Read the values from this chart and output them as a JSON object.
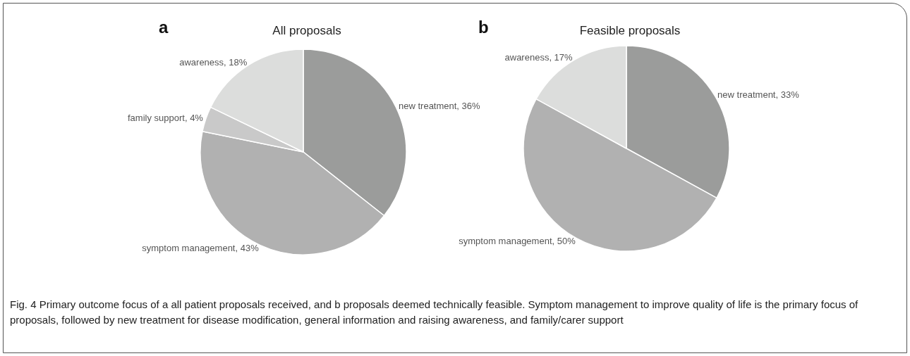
{
  "chart_data": [
    {
      "type": "pie",
      "title": "All proposals",
      "categories": [
        "new treatment",
        "symptom management",
        "family support",
        "awareness"
      ],
      "values": [
        36,
        43,
        4,
        18
      ],
      "colors": [
        "#9b9c9b",
        "#b1b1b1",
        "#c9c9c9",
        "#dcdddc"
      ],
      "value_labels": [
        "36%",
        "43%",
        "4%",
        "18%"
      ],
      "legend": false,
      "annotations": [
        "a",
        "Fig. 4 Primary outcome focus of a all patient proposals received, and b proposals deemed technically feasible. Symptom management to improve quality of life is the primary focus of proposals, followed by new treatment for disease modification, general information and raising awareness, and family/carer support"
      ]
    },
    {
      "type": "pie",
      "title": "Feasible proposals",
      "categories": [
        "new treatment",
        "symptom management",
        "awareness"
      ],
      "values": [
        33,
        50,
        17
      ],
      "colors": [
        "#9b9c9b",
        "#b1b1b1",
        "#dcdddc"
      ],
      "value_labels": [
        "33%",
        "50%",
        "17%"
      ],
      "legend": false,
      "annotations": [
        "b"
      ]
    }
  ]
}
